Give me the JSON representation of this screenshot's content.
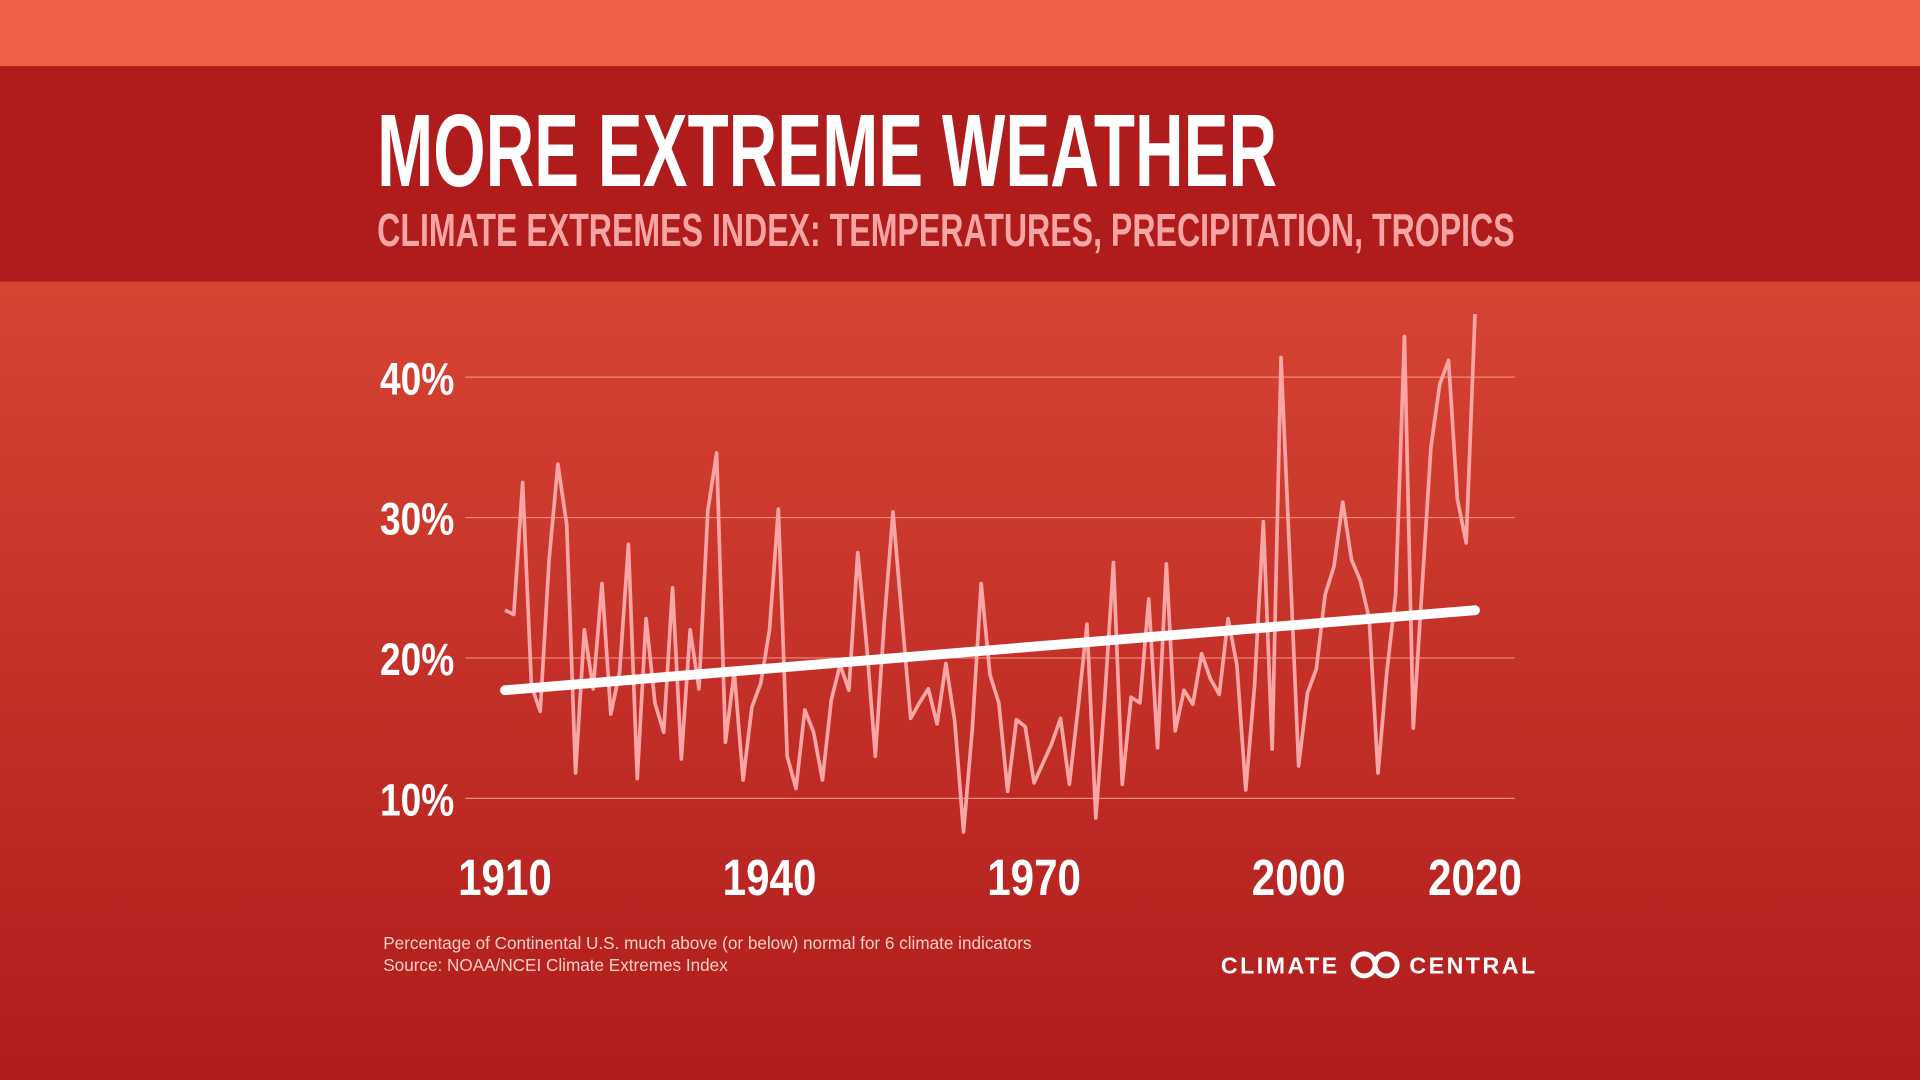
{
  "chart_data": {
    "type": "line",
    "title": "MORE EXTREME WEATHER",
    "subtitle": "CLIMATE EXTREMES INDEX: TEMPERATURES, PRECIPITATION, TROPICS",
    "x": [
      1910,
      1911,
      1912,
      1913,
      1914,
      1915,
      1916,
      1917,
      1918,
      1919,
      1920,
      1921,
      1922,
      1923,
      1924,
      1925,
      1926,
      1927,
      1928,
      1929,
      1930,
      1931,
      1932,
      1933,
      1934,
      1935,
      1936,
      1937,
      1938,
      1939,
      1940,
      1941,
      1942,
      1943,
      1944,
      1945,
      1946,
      1947,
      1948,
      1949,
      1950,
      1951,
      1952,
      1953,
      1954,
      1955,
      1956,
      1957,
      1958,
      1959,
      1960,
      1961,
      1962,
      1963,
      1964,
      1965,
      1966,
      1967,
      1968,
      1969,
      1970,
      1971,
      1972,
      1973,
      1974,
      1975,
      1976,
      1977,
      1978,
      1979,
      1980,
      1981,
      1982,
      1983,
      1984,
      1985,
      1986,
      1987,
      1988,
      1989,
      1990,
      1991,
      1992,
      1993,
      1994,
      1995,
      1996,
      1997,
      1998,
      1999,
      2000,
      2001,
      2002,
      2003,
      2004,
      2005,
      2006,
      2007,
      2008,
      2009,
      2010,
      2011,
      2012,
      2013,
      2014,
      2015,
      2016,
      2017,
      2018,
      2019,
      2020
    ],
    "values": [
      23.4,
      23.1,
      32.5,
      18,
      16.2,
      27,
      33.8,
      29.5,
      11.8,
      22,
      17.8,
      25.3,
      16,
      19,
      28.1,
      11.4,
      22.8,
      16.8,
      14.7,
      25,
      12.8,
      22,
      17.8,
      30.5,
      34.6,
      14,
      19,
      11.3,
      16.5,
      18.2,
      22,
      30.6,
      13,
      10.7,
      16.3,
      14.7,
      11.3,
      17,
      19.5,
      17.7,
      27.5,
      21,
      13,
      22.5,
      30.4,
      23,
      15.7,
      16.8,
      17.8,
      15.3,
      19.6,
      15.5,
      7.6,
      15,
      25.3,
      18.8,
      16.8,
      10.5,
      15.6,
      15.1,
      11.1,
      12.5,
      13.9,
      15.7,
      11,
      16.5,
      22.4,
      8.6,
      17,
      26.8,
      11,
      17.2,
      16.8,
      24.2,
      13.6,
      26.7,
      14.8,
      17.7,
      16.7,
      20.3,
      18.5,
      17.4,
      22.8,
      19.5,
      10.6,
      18,
      29.7,
      13.5,
      41.4,
      27,
      12.3,
      17.5,
      19.2,
      24.5,
      26.5,
      31.1,
      27,
      25.5,
      22.8,
      11.8,
      19,
      24.5,
      42.9,
      15,
      25,
      35,
      39.5,
      41.2,
      31.3,
      28.2,
      44.5
    ],
    "color": "#f9a5a5",
    "trend": {
      "x": [
        1910,
        2020
      ],
      "values": [
        17.7,
        23.4
      ],
      "color": "#ffffff"
    },
    "xlim": [
      1905.5,
      2024.5
    ],
    "xticks": [
      1910,
      1940,
      1970,
      2000,
      2020
    ],
    "ylim": [
      5,
      45
    ],
    "yticks": [
      {
        "value": 10,
        "label": "10%"
      },
      {
        "value": 20,
        "label": "20%"
      },
      {
        "value": 30,
        "label": "30%"
      },
      {
        "value": 40,
        "label": "40%"
      }
    ],
    "grid": true,
    "note": "Percentage of Continental U.S. much above (or below) normal for 6 climate indicators",
    "source": "Source:  NOAA/NCEI Climate Extremes Index",
    "logo": {
      "left": "CLIMATE",
      "right": "CENTRAL"
    }
  }
}
